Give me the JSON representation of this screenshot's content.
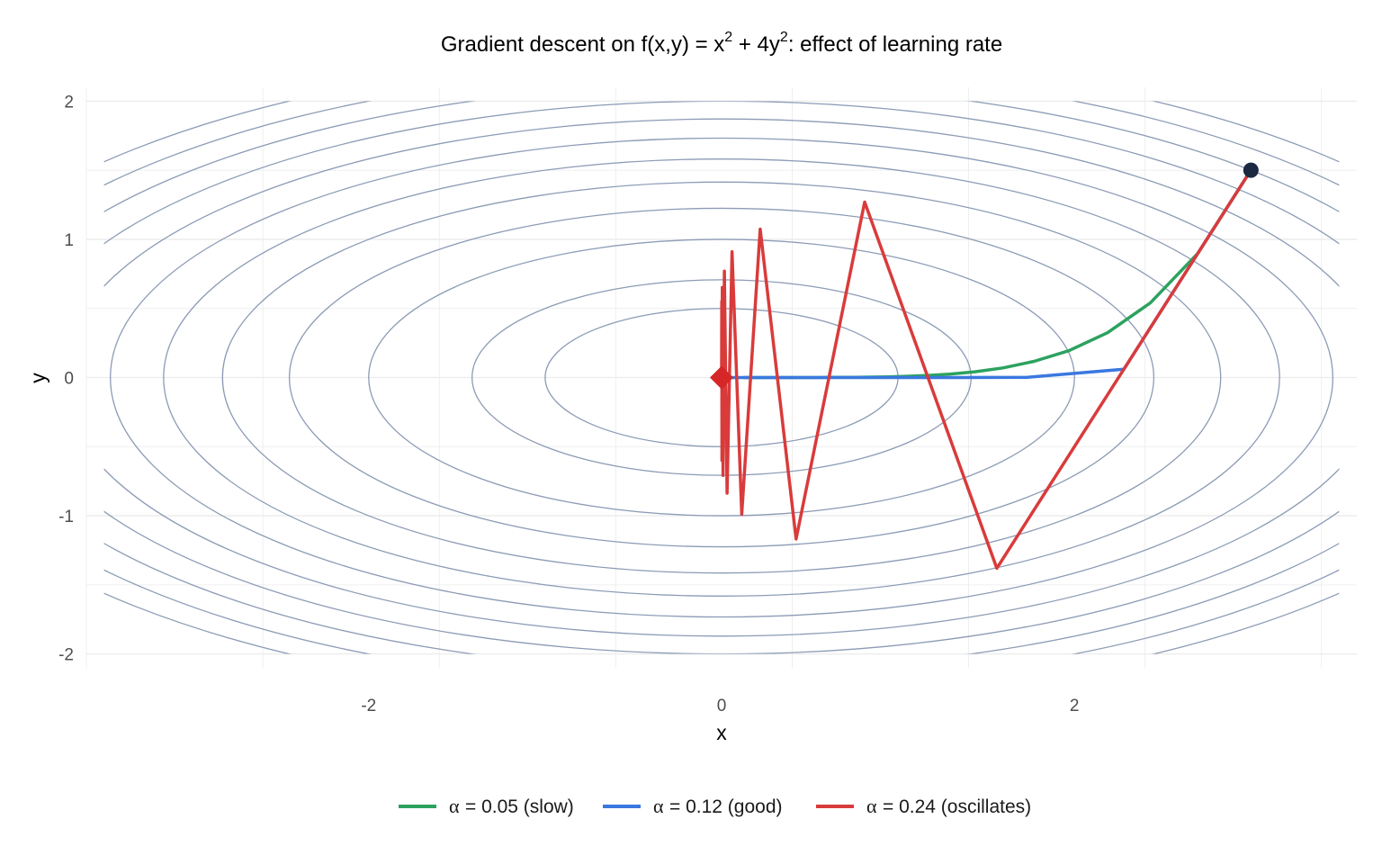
{
  "chart_data": {
    "type": "line",
    "title": {
      "prefix": "Gradient descent on f(x,y) = x",
      "sup1": "2",
      "middle": " + 4y",
      "sup2": "2",
      "suffix": ": effect of learning rate"
    },
    "xlabel": "x",
    "ylabel": "y",
    "xlim": [
      -3.5,
      3.5
    ],
    "ylim": [
      -2.0,
      2.0
    ],
    "x_ticks": [
      -2,
      0,
      2
    ],
    "x_tick_labels": [
      "-2",
      "0",
      "2"
    ],
    "y_ticks": [
      -2,
      -1,
      0,
      1,
      2
    ],
    "y_tick_labels": [
      "-2",
      "-1",
      "0",
      "1",
      "2"
    ],
    "grid": true,
    "legend_position": "bottom",
    "contours": {
      "function": "x^2 + 4y^2",
      "levels": [
        1,
        2,
        4,
        6,
        8,
        10,
        12,
        14,
        16,
        18,
        20,
        22
      ],
      "color": "#8c9bb5"
    },
    "start_point": {
      "x": 3.0,
      "y": 1.5,
      "color": "#1b2a41"
    },
    "minimum_marker": {
      "x": 0.0,
      "y": 0.0,
      "color": "#d62728"
    },
    "series": [
      {
        "name": "α = 0.05 (slow)",
        "symbol": "α",
        "label": "= 0.05 (slow)",
        "color": "#2ca25f",
        "x": [
          3.0,
          2.7,
          2.43,
          2.187,
          1.968,
          1.771,
          1.594,
          1.435,
          1.291,
          1.162,
          1.046,
          0.941,
          0.847,
          0.762,
          0.686,
          0.617,
          0.556,
          0.5,
          0.45,
          0.405,
          0.365,
          0.328,
          0.295,
          0.266,
          0.239,
          0.215,
          0.194,
          0.174,
          0.157,
          0.141,
          0.127
        ],
        "y": [
          1.5,
          0.9,
          0.54,
          0.324,
          0.194,
          0.117,
          0.07,
          0.042,
          0.025,
          0.015,
          0.009,
          0.005,
          0.003,
          0.002,
          0.001,
          0.001,
          0.0,
          0.0,
          0.0,
          0.0,
          0.0,
          0.0,
          0.0,
          0.0,
          0.0,
          0.0,
          0.0,
          0.0,
          0.0,
          0.0,
          0.0
        ]
      },
      {
        "name": "α = 0.12 (good)",
        "symbol": "α",
        "label": "= 0.12 (good)",
        "color": "#3a78e0",
        "x": [
          3.0,
          2.28,
          1.733,
          1.317,
          1.001,
          0.761,
          0.578,
          0.439,
          0.334,
          0.254,
          0.193,
          0.147,
          0.111,
          0.085,
          0.064,
          0.049,
          0.037,
          0.028,
          0.021,
          0.016,
          0.012,
          0.0
        ],
        "y": [
          1.5,
          0.06,
          0.002,
          0.0,
          0.0,
          0.0,
          0.0,
          0.0,
          0.0,
          0.0,
          0.0,
          0.0,
          0.0,
          0.0,
          0.0,
          0.0,
          0.0,
          0.0,
          0.0,
          0.0,
          0.0,
          0.0
        ]
      },
      {
        "name": "α = 0.24 (oscillates)",
        "symbol": "α",
        "label": "= 0.24 (oscillates)",
        "color": "#d93b3b",
        "x": [
          3.0,
          1.56,
          0.811,
          0.422,
          0.219,
          0.114,
          0.059,
          0.031,
          0.016,
          0.008,
          0.004,
          0.002,
          0.001,
          0.0
        ],
        "y": [
          1.5,
          -1.38,
          1.27,
          -1.168,
          1.074,
          -0.989,
          0.91,
          -0.837,
          0.77,
          -0.708,
          0.652,
          -0.6,
          0.552,
          0.0
        ]
      }
    ]
  }
}
